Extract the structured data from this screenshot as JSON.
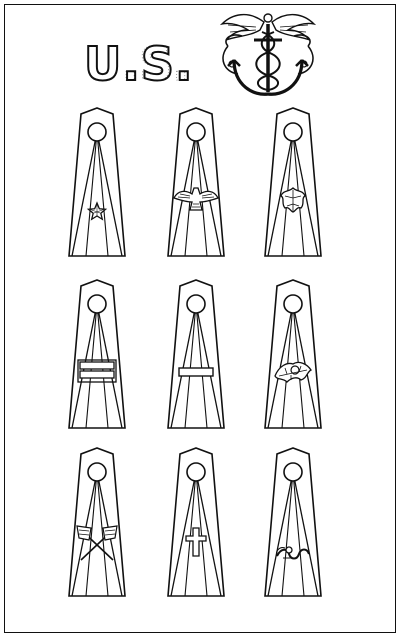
{
  "header": {
    "us_text": "U.S.",
    "caduceus_icon": "caduceus-anchor-insignia-icon"
  },
  "ink_color": "#111111",
  "paper_color": "#ffffff",
  "straps": [
    {
      "insignia": "star-icon"
    },
    {
      "insignia": "eagle-icon"
    },
    {
      "insignia": "leaf-icon"
    },
    {
      "insignia": "double-bar-icon"
    },
    {
      "insignia": "single-bar-icon"
    },
    {
      "insignia": "oak-leaf-acorn-icon"
    },
    {
      "insignia": "crossed-flags-icon"
    },
    {
      "insignia": "cross-icon"
    },
    {
      "insignia": "serpent-icon"
    }
  ]
}
